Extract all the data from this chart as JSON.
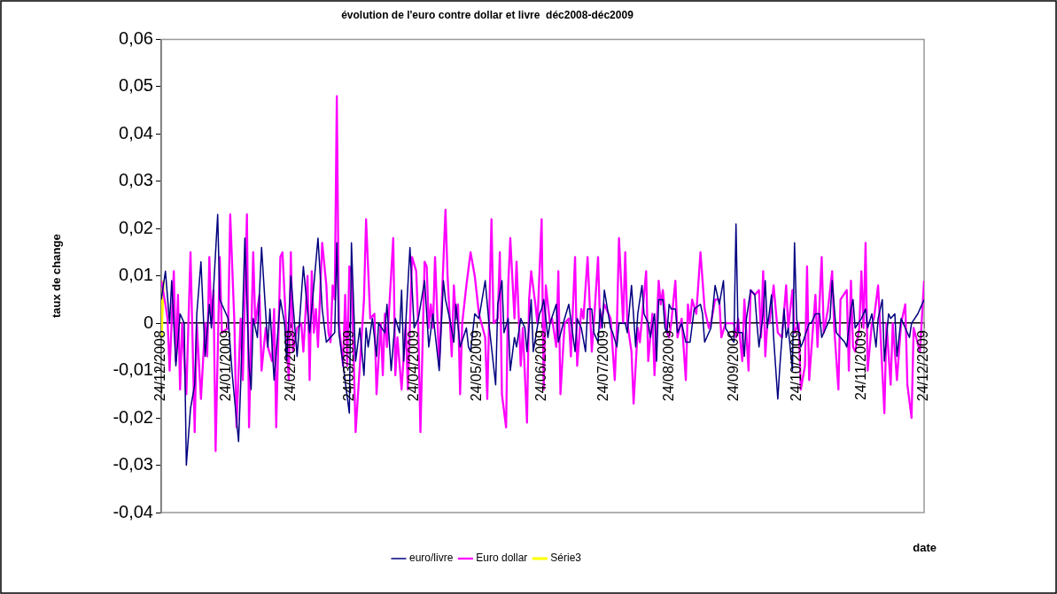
{
  "chart_data": {
    "type": "line",
    "title": "évolution de l'euro contre dollar et livre  déc2008-déc2009",
    "xlabel": "date",
    "ylabel": "taux de change",
    "legend": "bottom",
    "xlim": [
      "2008-12-24",
      "2009-12-24"
    ],
    "xticks": [
      {
        "value": "2008-12-24",
        "label": "24/12/2008"
      },
      {
        "value": "2009-01-24",
        "label": "24/01/2009"
      },
      {
        "value": "2009-02-24",
        "label": "24/02/2009"
      },
      {
        "value": "2009-03-24",
        "label": "24/03/2009"
      },
      {
        "value": "2009-04-24",
        "label": "24/04/2009"
      },
      {
        "value": "2009-05-24",
        "label": "24/05/2009"
      },
      {
        "value": "2009-06-24",
        "label": "24/06/2009"
      },
      {
        "value": "2009-07-24",
        "label": "24/07/2009"
      },
      {
        "value": "2009-08-24",
        "label": "24/08/2009"
      },
      {
        "value": "2009-09-24",
        "label": "24/09/2009"
      },
      {
        "value": "2009-10-24",
        "label": "24/10/2009"
      },
      {
        "value": "2009-11-24",
        "label": "24/11/2009"
      },
      {
        "value": "2009-12-24",
        "label": "24/12/2009"
      }
    ],
    "ylim": [
      -0.04,
      0.06
    ],
    "yticks": [
      {
        "value": -0.04,
        "label": "-0,04"
      },
      {
        "value": -0.03,
        "label": "-0,03"
      },
      {
        "value": -0.02,
        "label": "-0,02"
      },
      {
        "value": -0.01,
        "label": "-0,01"
      },
      {
        "value": 0,
        "label": "0"
      },
      {
        "value": 0.01,
        "label": "0,01"
      },
      {
        "value": 0.02,
        "label": "0,02"
      },
      {
        "value": 0.03,
        "label": "0,03"
      },
      {
        "value": 0.04,
        "label": "0,04"
      },
      {
        "value": 0.05,
        "label": "0,05"
      },
      {
        "value": 0.06,
        "label": "0,06"
      }
    ],
    "series": [
      {
        "name": "euro/livre",
        "color": "#000080",
        "x": [
          "2008-12-24",
          "2008-12-26",
          "2008-12-28",
          "2008-12-29",
          "2008-12-31",
          "2009-01-02",
          "2009-01-04",
          "2009-01-05",
          "2009-01-07",
          "2009-01-09",
          "2009-01-10",
          "2009-01-12",
          "2009-01-14",
          "2009-01-16",
          "2009-01-17",
          "2009-01-20",
          "2009-01-21",
          "2009-01-25",
          "2009-01-27",
          "2009-01-30",
          "2009-01-31",
          "2009-02-02",
          "2009-02-04",
          "2009-02-05",
          "2009-02-06",
          "2009-02-08",
          "2009-02-10",
          "2009-02-13",
          "2009-02-14",
          "2009-02-16",
          "2009-02-19",
          "2009-02-21",
          "2009-02-22",
          "2009-02-24",
          "2009-02-27",
          "2009-03-02",
          "2009-03-05",
          "2009-03-09",
          "2009-03-11",
          "2009-03-13",
          "2009-03-17",
          "2009-03-18",
          "2009-03-19",
          "2009-03-24",
          "2009-03-25",
          "2009-03-27",
          "2009-03-29",
          "2009-03-31",
          "2009-04-01",
          "2009-04-02",
          "2009-04-04",
          "2009-04-06",
          "2009-04-07",
          "2009-04-10",
          "2009-04-11",
          "2009-04-13",
          "2009-04-15",
          "2009-04-17",
          "2009-04-18",
          "2009-04-19",
          "2009-04-22",
          "2009-04-24",
          "2009-04-26",
          "2009-04-29",
          "2009-05-01",
          "2009-05-03",
          "2009-05-06",
          "2009-05-08",
          "2009-05-09",
          "2009-05-11",
          "2009-05-13",
          "2009-05-14",
          "2009-05-16",
          "2009-05-19",
          "2009-05-20",
          "2009-05-21",
          "2009-05-23",
          "2009-05-25",
          "2009-05-28",
          "2009-05-30",
          "2009-06-02",
          "2009-06-03",
          "2009-06-05",
          "2009-06-06",
          "2009-06-08",
          "2009-06-09",
          "2009-06-11",
          "2009-06-12",
          "2009-06-14",
          "2009-06-16",
          "2009-06-17",
          "2009-06-19",
          "2009-06-20",
          "2009-06-23",
          "2009-06-24",
          "2009-06-25",
          "2009-06-27",
          "2009-06-28",
          "2009-07-01",
          "2009-07-02",
          "2009-07-05",
          "2009-07-07",
          "2009-07-10",
          "2009-07-11",
          "2009-07-13",
          "2009-07-15",
          "2009-07-16",
          "2009-07-18",
          "2009-07-19",
          "2009-07-21",
          "2009-07-22",
          "2009-07-23",
          "2009-07-24",
          "2009-07-27",
          "2009-07-28",
          "2009-07-30",
          "2009-07-31",
          "2009-08-03",
          "2009-08-04",
          "2009-08-06",
          "2009-08-08",
          "2009-08-09",
          "2009-08-11",
          "2009-08-12",
          "2009-08-14",
          "2009-08-15",
          "2009-08-17",
          "2009-08-18",
          "2009-08-19",
          "2009-08-21",
          "2009-08-22",
          "2009-08-23",
          "2009-08-24",
          "2009-08-25",
          "2009-08-27",
          "2009-08-28",
          "2009-08-30",
          "2009-09-01",
          "2009-09-03",
          "2009-09-05",
          "2009-09-08",
          "2009-09-09",
          "2009-09-10",
          "2009-09-13",
          "2009-09-15",
          "2009-09-17",
          "2009-09-19",
          "2009-09-20",
          "2009-09-24",
          "2009-09-25",
          "2009-09-26",
          "2009-09-28",
          "2009-09-29",
          "2009-09-30",
          "2009-10-02",
          "2009-10-04",
          "2009-10-05",
          "2009-10-06",
          "2009-10-08",
          "2009-10-09",
          "2009-10-10",
          "2009-10-12",
          "2009-10-13",
          "2009-10-15",
          "2009-10-16",
          "2009-10-18",
          "2009-10-19",
          "2009-10-20",
          "2009-10-22",
          "2009-10-23",
          "2009-10-24",
          "2009-10-26",
          "2009-10-27",
          "2009-10-30",
          "2009-10-31",
          "2009-11-02",
          "2009-11-04",
          "2009-11-05",
          "2009-11-07",
          "2009-11-09",
          "2009-11-10",
          "2009-11-12",
          "2009-11-14",
          "2009-11-16",
          "2009-11-17",
          "2009-11-19",
          "2009-11-20",
          "2009-11-21",
          "2009-11-24",
          "2009-11-26",
          "2009-11-27",
          "2009-11-29",
          "2009-12-01",
          "2009-12-02",
          "2009-12-04",
          "2009-12-05",
          "2009-12-07",
          "2009-12-08",
          "2009-12-10",
          "2009-12-11",
          "2009-12-13",
          "2009-12-15",
          "2009-12-17",
          "2009-12-18",
          "2009-12-21",
          "2009-12-22",
          "2009-12-24"
        ],
        "values": [
          0.005,
          0.011,
          0,
          0.009,
          -0.009,
          0.002,
          0,
          -0.03,
          -0.018,
          -0.013,
          0.002,
          0.013,
          -0.007,
          0.004,
          -0.001,
          0.023,
          0.005,
          0.001,
          -0.011,
          -0.025,
          -0.013,
          0.018,
          -0.009,
          -0.014,
          0.001,
          -0.003,
          0.016,
          -0.005,
          0.003,
          -0.012,
          0.005,
          0,
          -0.008,
          0.01,
          -0.007,
          0.012,
          -0.002,
          0.018,
          0.003,
          -0.004,
          -0.002,
          0.017,
          -0.002,
          -0.019,
          0.017,
          -0.008,
          -0.001,
          -0.011,
          -0.001,
          -0.005,
          0.001,
          -0.007,
          0,
          -0.002,
          0.004,
          -0.01,
          0.001,
          -0.002,
          0.007,
          -0.008,
          0.016,
          -0.001,
          0.001,
          0.009,
          -0.005,
          0.002,
          -0.01,
          0.009,
          0.005,
          0.001,
          -0.004,
          0.004,
          -0.005,
          -0.001,
          -0.005,
          -0.006,
          0.002,
          0.001,
          0.009,
          -0.001,
          -0.013,
          0.004,
          0.009,
          -0.002,
          0.001,
          -0.01,
          -0.003,
          -0.005,
          0.001,
          -0.001,
          -0.006,
          0.005,
          -0.006,
          0.002,
          0.003,
          0.005,
          -0.003,
          0,
          0.004,
          -0.004,
          0.001,
          0.004,
          -0.006,
          0.001,
          -0.001,
          -0.006,
          0.003,
          0.003,
          -0.002,
          -0.004,
          0.003,
          -0.001,
          0.007,
          -0.001,
          -0.002,
          -0.005,
          0,
          0,
          -0.002,
          0.008,
          -0.005,
          0.002,
          0.008,
          0.002,
          0,
          -0.003,
          0.002,
          -0.008,
          0.005,
          0.005,
          -0.001,
          -0.002,
          0.004,
          0.003,
          0.003,
          -0.002,
          0,
          -0.004,
          -0.004,
          0.003,
          0.004,
          0.002,
          -0.004,
          -0.001,
          0.008,
          0.004,
          0.009,
          -0.001,
          -0.004,
          0.021,
          -0.002,
          -0.002,
          -0.007,
          0.001,
          0.007,
          0.006,
          0,
          -0.005,
          0.002,
          0.009,
          -0.001,
          0.006,
          -0.003,
          -0.016,
          -0.009,
          0.003,
          -0.003,
          -0.001,
          -0.01,
          0.017,
          0.001,
          -0.005,
          -0.004,
          0,
          0,
          0.002,
          0.002,
          -0.003,
          -0.001,
          0.001,
          0.009,
          -0.002,
          -0.003,
          -0.004,
          -0.005,
          0.003,
          0.005,
          -0.001,
          0.001,
          0.003,
          -0.001,
          0.002,
          -0.005,
          0.001,
          0.005,
          -0.008,
          0.002,
          0.001,
          0.002,
          -0.007,
          0.001,
          -0.001,
          -0.003,
          0,
          0.002,
          0.003,
          0.005
        ]
      },
      {
        "name": "Euro dollar",
        "color": "#ff00ff",
        "x": [
          "2008-12-24",
          "2008-12-26",
          "2008-12-27",
          "2008-12-28",
          "2008-12-30",
          "2008-12-31",
          "2009-01-01",
          "2009-01-02",
          "2009-01-03",
          "2009-01-05",
          "2009-01-07",
          "2009-01-09",
          "2009-01-10",
          "2009-01-12",
          "2009-01-14",
          "2009-01-15",
          "2009-01-16",
          "2009-01-17",
          "2009-01-18",
          "2009-01-19",
          "2009-01-21",
          "2009-01-22",
          "2009-01-25",
          "2009-01-26",
          "2009-01-28",
          "2009-01-29",
          "2009-01-31",
          "2009-02-01",
          "2009-02-03",
          "2009-02-04",
          "2009-02-06",
          "2009-02-07",
          "2009-02-09",
          "2009-02-10",
          "2009-02-12",
          "2009-02-13",
          "2009-02-15",
          "2009-02-16",
          "2009-02-17",
          "2009-02-19",
          "2009-02-20",
          "2009-02-22",
          "2009-02-23",
          "2009-02-24",
          "2009-02-25",
          "2009-02-27",
          "2009-03-01",
          "2009-03-02",
          "2009-03-04",
          "2009-03-05",
          "2009-03-06",
          "2009-03-07",
          "2009-03-08",
          "2009-03-09",
          "2009-03-11",
          "2009-03-13",
          "2009-03-14",
          "2009-03-15",
          "2009-03-16",
          "2009-03-17",
          "2009-03-18",
          "2009-03-19",
          "2009-03-21",
          "2009-03-22",
          "2009-03-23",
          "2009-03-24",
          "2009-03-25",
          "2009-03-27",
          "2009-03-29",
          "2009-03-31",
          "2009-04-01",
          "2009-04-03",
          "2009-04-05",
          "2009-04-06",
          "2009-04-08",
          "2009-04-09",
          "2009-04-10",
          "2009-04-11",
          "2009-04-14",
          "2009-04-15",
          "2009-04-16",
          "2009-04-18",
          "2009-04-20",
          "2009-04-21",
          "2009-04-23",
          "2009-04-25",
          "2009-04-26",
          "2009-04-27",
          "2009-04-29",
          "2009-04-30",
          "2009-05-01",
          "2009-05-02",
          "2009-05-03",
          "2009-05-04",
          "2009-05-06",
          "2009-05-09",
          "2009-05-10",
          "2009-05-12",
          "2009-05-13",
          "2009-05-14",
          "2009-05-15",
          "2009-05-16",
          "2009-05-17",
          "2009-05-19",
          "2009-05-21",
          "2009-05-23",
          "2009-05-25",
          "2009-05-28",
          "2009-05-29",
          "2009-05-31",
          "2009-06-01",
          "2009-06-03",
          "2009-06-04",
          "2009-06-05",
          "2009-06-07",
          "2009-06-08",
          "2009-06-09",
          "2009-06-11",
          "2009-06-12",
          "2009-06-14",
          "2009-06-15",
          "2009-06-17",
          "2009-06-18",
          "2009-06-19",
          "2009-06-21",
          "2009-06-22",
          "2009-06-24",
          "2009-06-25",
          "2009-06-26",
          "2009-06-28",
          "2009-06-29",
          "2009-07-01",
          "2009-07-02",
          "2009-07-03",
          "2009-07-05",
          "2009-07-07",
          "2009-07-08",
          "2009-07-10",
          "2009-07-11",
          "2009-07-13",
          "2009-07-14",
          "2009-07-16",
          "2009-07-18",
          "2009-07-19",
          "2009-07-21",
          "2009-07-22",
          "2009-07-24",
          "2009-07-27",
          "2009-07-29",
          "2009-07-30",
          "2009-07-31",
          "2009-08-02",
          "2009-08-03",
          "2009-08-04",
          "2009-08-06",
          "2009-08-07",
          "2009-08-09",
          "2009-08-10",
          "2009-08-11",
          "2009-08-13",
          "2009-08-14",
          "2009-08-16",
          "2009-08-17",
          "2009-08-19",
          "2009-08-20",
          "2009-08-21",
          "2009-08-23",
          "2009-08-24",
          "2009-08-25",
          "2009-08-27",
          "2009-08-28",
          "2009-08-30",
          "2009-09-01",
          "2009-09-02",
          "2009-09-03",
          "2009-09-04",
          "2009-09-06",
          "2009-09-08",
          "2009-09-10",
          "2009-09-12",
          "2009-09-13",
          "2009-09-15",
          "2009-09-17",
          "2009-09-18",
          "2009-09-20",
          "2009-09-24",
          "2009-09-25",
          "2009-09-26",
          "2009-09-28",
          "2009-09-29",
          "2009-10-01",
          "2009-10-02",
          "2009-10-04",
          "2009-10-06",
          "2009-10-07",
          "2009-10-08",
          "2009-10-09",
          "2009-10-10",
          "2009-10-11",
          "2009-10-13",
          "2009-10-15",
          "2009-10-17",
          "2009-10-19",
          "2009-10-20",
          "2009-10-22",
          "2009-10-23",
          "2009-10-25",
          "2009-10-26",
          "2009-10-28",
          "2009-10-29",
          "2009-10-30",
          "2009-11-01",
          "2009-11-02",
          "2009-11-03",
          "2009-11-05",
          "2009-11-06",
          "2009-11-08",
          "2009-11-10",
          "2009-11-11",
          "2009-11-13",
          "2009-11-14",
          "2009-11-17",
          "2009-11-18",
          "2009-11-19",
          "2009-11-20",
          "2009-11-21",
          "2009-11-23",
          "2009-11-24",
          "2009-11-25",
          "2009-11-26",
          "2009-11-27",
          "2009-11-29",
          "2009-11-30",
          "2009-12-02",
          "2009-12-03",
          "2009-12-05",
          "2009-12-06",
          "2009-12-08",
          "2009-12-09",
          "2009-12-11",
          "2009-12-13",
          "2009-12-15",
          "2009-12-16",
          "2009-12-18",
          "2009-12-19",
          "2009-12-22",
          "2009-12-24"
        ],
        "values": [
          0.009,
          0.004,
          0.001,
          -0.01,
          0.011,
          -0.008,
          0.006,
          -0.014,
          0,
          -0.015,
          0.015,
          -0.023,
          0,
          -0.016,
          0,
          -0.007,
          0.014,
          0,
          0.007,
          -0.027,
          0.014,
          -0.002,
          -0.001,
          0.023,
          0,
          -0.022,
          0.001,
          -0.012,
          0.023,
          -0.022,
          0.015,
          0,
          0.006,
          -0.01,
          -0.001,
          -0.005,
          -0.008,
          0.003,
          -0.022,
          0.014,
          0.015,
          -0.003,
          -0.012,
          0.015,
          -0.006,
          -0.001,
          0,
          -0.006,
          0.01,
          -0.012,
          0.011,
          -0.002,
          0.003,
          -0.005,
          0.017,
          0.008,
          -0.002,
          -0.004,
          0.008,
          0.005,
          0.048,
          0,
          -0.009,
          0.006,
          -0.009,
          0.012,
          0.011,
          -0.023,
          -0.009,
          0.005,
          0.022,
          0.001,
          0.002,
          -0.015,
          0,
          -0.011,
          0.002,
          -0.005,
          0.018,
          -0.011,
          -0.003,
          -0.014,
          0,
          -0.014,
          0.014,
          0.011,
          -0.001,
          -0.023,
          0.013,
          0.012,
          -0.001,
          0.004,
          -0.001,
          0.014,
          -0.009,
          0.024,
          0.01,
          -0.007,
          0.008,
          0.001,
          0.004,
          -0.015,
          0,
          0.008,
          0.015,
          0.01,
          0.002,
          -0.003,
          -0.016,
          0.022,
          0,
          0.001,
          0.015,
          -0.015,
          -0.022,
          0.008,
          0.018,
          0.001,
          0.013,
          -0.009,
          -0.001,
          -0.021,
          0.005,
          0.011,
          0.004,
          0,
          0.022,
          -0.014,
          0.008,
          0,
          0.001,
          -0.005,
          0.011,
          -0.015,
          0,
          0.001,
          -0.007,
          0.014,
          -0.009,
          0.003,
          0.001,
          0.014,
          -0.006,
          0,
          0.014,
          -0.001,
          0.004,
          0.001,
          -0.012,
          -0.001,
          0.018,
          0,
          0.015,
          0,
          -0.006,
          -0.017,
          -0.001,
          -0.004,
          0.001,
          0.011,
          -0.008,
          0.002,
          -0.011,
          0.009,
          0.004,
          0.007,
          -0.002,
          -0.003,
          0,
          0.009,
          -0.003,
          0.001,
          -0.012,
          0.004,
          0,
          0.005,
          0.002,
          0.015,
          0.003,
          -0.001,
          0,
          0.005,
          0.005,
          -0.003,
          0,
          0,
          -0.003,
          0.001,
          -0.008,
          0.005,
          -0.01,
          0.007,
          0.006,
          0.007,
          -0.003,
          0.011,
          -0.007,
          0,
          0,
          0.008,
          -0.002,
          -0.003,
          0.008,
          -0.001,
          0.007,
          -0.002,
          0,
          -0.014,
          -0.009,
          0.012,
          -0.012,
          0,
          0.006,
          -0.005,
          0.014,
          -0.002,
          0.003,
          0.011,
          -0.001,
          -0.014,
          0.005,
          0.007,
          -0.01,
          0.009,
          -0.005,
          -0.006,
          -0.001,
          0.011,
          -0.001,
          0.017,
          -0.01,
          0,
          0.001,
          0.008,
          -0.001,
          -0.019,
          0,
          -0.013,
          0,
          -0.012,
          0,
          0.004,
          -0.013,
          -0.02,
          -0.001,
          -0.006,
          0.009
        ]
      },
      {
        "name": "Série3",
        "color": "#ffff00",
        "x": [
          "2008-12-24",
          "2008-12-25"
        ],
        "values": [
          -0.003,
          0.009
        ]
      }
    ]
  }
}
